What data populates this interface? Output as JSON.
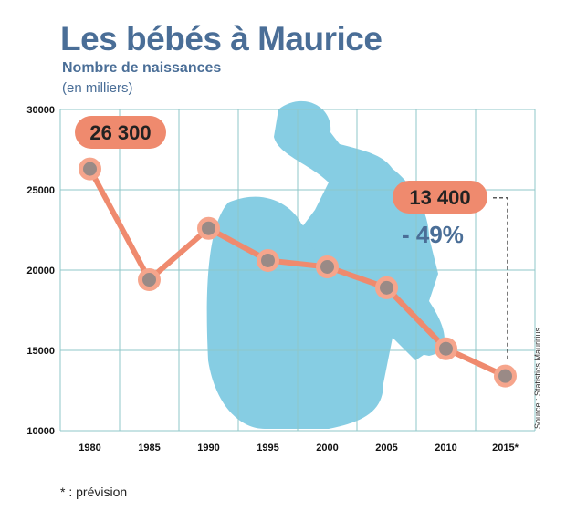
{
  "chart_data": {
    "type": "line",
    "title": "Les bébés à Maurice",
    "subtitle": "Nombre de naissances",
    "unit_label": "(en milliers)",
    "categories": [
      "1980",
      "1985",
      "1990",
      "1995",
      "2000",
      "2005",
      "2010",
      "2015*"
    ],
    "values": [
      26300,
      19400,
      22600,
      20600,
      20200,
      18900,
      15100,
      13400
    ],
    "ylim": [
      10000,
      30000
    ],
    "yticks": [
      "10000",
      "15000",
      "20000",
      "25000",
      "30000"
    ],
    "grid": true,
    "annotations": {
      "first": "26 300",
      "last": "13 400",
      "change": "- 49%"
    },
    "footnote": "* : prévision",
    "source": "Source : Statistics Mauritius",
    "colors": {
      "title": "#4a6e97",
      "line": "#ef8a6e",
      "marker": "#f6a58c",
      "grid": "#8fc7c9",
      "silhouette": "#86cde3"
    }
  }
}
